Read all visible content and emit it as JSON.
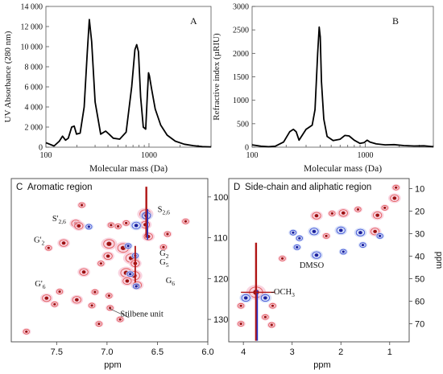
{
  "chart_data": [
    {
      "id": "A",
      "type": "line",
      "panel_letter": "A",
      "xlabel": "Molecular mass (Da)",
      "ylabel": "UV Absorbance (280 nm)",
      "x_scale": "log",
      "xlim": [
        100,
        4000
      ],
      "ylim": [
        0,
        14000
      ],
      "x_ticks": [
        100,
        1000
      ],
      "x_tick_labels": [
        "100",
        "1000"
      ],
      "y_ticks": [
        0,
        2000,
        4000,
        6000,
        8000,
        10000,
        12000,
        14000
      ],
      "y_tick_labels": [
        "0",
        "2 000",
        "4 000",
        "6 000",
        "8 000",
        "10 000",
        "12 000",
        "14 000"
      ],
      "series": [
        {
          "color": "#000000",
          "x": [
            100,
            120,
            135,
            145,
            155,
            165,
            178,
            188,
            198,
            215,
            235,
            252,
            264,
            278,
            300,
            340,
            380,
            410,
            450,
            520,
            600,
            680,
            730,
            760,
            790,
            830,
            880,
            930,
            965,
            990,
            1010,
            1060,
            1150,
            1300,
            1500,
            1800,
            2200,
            2700,
            3300,
            4000
          ],
          "y": [
            450,
            120,
            600,
            1100,
            700,
            900,
            2000,
            2100,
            1300,
            1400,
            4000,
            9500,
            12700,
            10500,
            4500,
            1300,
            1600,
            1300,
            900,
            800,
            1500,
            6000,
            9700,
            10200,
            9500,
            5000,
            2000,
            1800,
            5300,
            7400,
            7100,
            5800,
            3800,
            2200,
            1200,
            600,
            300,
            150,
            60,
            30
          ]
        }
      ]
    },
    {
      "id": "B",
      "type": "line",
      "panel_letter": "B",
      "xlabel": "Molecular mass (Da)",
      "ylabel": "Refractive index (µRIU)",
      "x_scale": "log",
      "xlim": [
        100,
        4000
      ],
      "ylim": [
        0,
        3000
      ],
      "x_ticks": [
        100,
        1000
      ],
      "x_tick_labels": [
        "100",
        "1000"
      ],
      "y_ticks": [
        0,
        500,
        1000,
        1500,
        2000,
        2500,
        3000
      ],
      "y_tick_labels": [
        "0",
        "500",
        "1000",
        "1500",
        "2000",
        "2500",
        "3000"
      ],
      "series": [
        {
          "color": "#000000",
          "x": [
            100,
            120,
            140,
            160,
            190,
            215,
            232,
            245,
            260,
            300,
            340,
            360,
            380,
            392,
            400,
            410,
            430,
            460,
            520,
            600,
            660,
            720,
            800,
            900,
            980,
            1040,
            1100,
            1250,
            1500,
            1800,
            2200,
            2700,
            3300,
            4000
          ],
          "y": [
            50,
            20,
            10,
            20,
            110,
            330,
            380,
            330,
            150,
            380,
            470,
            800,
            2000,
            2560,
            2350,
            1400,
            600,
            230,
            140,
            170,
            250,
            240,
            150,
            80,
            100,
            150,
            110,
            70,
            50,
            55,
            35,
            25,
            30,
            10
          ]
        }
      ]
    },
    {
      "id": "C",
      "type": "scatter",
      "panel_letter": "C",
      "title": "Aromatic region",
      "xlabel": "ppm",
      "ylabel": "",
      "x_reversed": true,
      "y_reversed": true,
      "xlim": [
        7.95,
        6.0
      ],
      "ylim": [
        95.5,
        135.5
      ],
      "x_ticks": [
        7.5,
        7.0,
        6.5,
        6.0
      ],
      "x_tick_labels": [
        "7.5",
        "7.0",
        "6.5",
        "6.0"
      ],
      "y_ticks": [
        100,
        110,
        120,
        130
      ],
      "y_tick_labels": [
        "100",
        "110",
        "120",
        "130"
      ],
      "annotations": [
        {
          "label": "S'",
          "sub": "2,6",
          "x": 7.4,
          "y": 105.5
        },
        {
          "label": "S",
          "sub": "2,6",
          "x": 6.53,
          "y": 103.3
        },
        {
          "label": "G'",
          "sub": "2",
          "x": 7.55,
          "y": 110.8
        },
        {
          "label": "G",
          "sub": "2",
          "x": 6.51,
          "y": 113.8
        },
        {
          "label": "G",
          "sub": "5",
          "x": 6.51,
          "y": 116.0
        },
        {
          "label": "G",
          "sub": "6",
          "x": 6.45,
          "y": 120.5
        },
        {
          "label": "G'",
          "sub": "6",
          "x": 7.54,
          "y": 121.5
        },
        {
          "label": "Stilbene unit",
          "sub": "",
          "x": 6.9,
          "y": 128.5
        }
      ],
      "peaks": [
        {
          "x": 6.62,
          "y": 104.2,
          "color": "red",
          "size": 3
        },
        {
          "x": 6.61,
          "y": 104.6,
          "color": "blue",
          "size": 2
        },
        {
          "x": 6.62,
          "y": 106.8,
          "color": "red",
          "size": 2
        },
        {
          "x": 7.31,
          "y": 106.5,
          "color": "red",
          "size": 2
        },
        {
          "x": 7.28,
          "y": 107.1,
          "color": "red",
          "size": 2
        },
        {
          "x": 7.18,
          "y": 107.3,
          "color": "blue",
          "size": 1
        },
        {
          "x": 6.96,
          "y": 106.9,
          "color": "red",
          "size": 1
        },
        {
          "x": 6.81,
          "y": 106.4,
          "color": "red",
          "size": 1
        },
        {
          "x": 6.71,
          "y": 107.0,
          "color": "blue",
          "size": 2
        },
        {
          "x": 6.89,
          "y": 107.2,
          "color": "red",
          "size": 1
        },
        {
          "x": 6.59,
          "y": 109.7,
          "color": "red",
          "size": 2
        },
        {
          "x": 7.43,
          "y": 111.3,
          "color": "red",
          "size": 2
        },
        {
          "x": 7.58,
          "y": 112.5,
          "color": "red",
          "size": 1
        },
        {
          "x": 6.98,
          "y": 111.5,
          "color": "red",
          "size": 3
        },
        {
          "x": 6.84,
          "y": 112.5,
          "color": "red",
          "size": 3
        },
        {
          "x": 6.79,
          "y": 112.0,
          "color": "blue",
          "size": 1
        },
        {
          "x": 6.99,
          "y": 114.5,
          "color": "red",
          "size": 2
        },
        {
          "x": 6.76,
          "y": 115.0,
          "color": "red",
          "size": 3
        },
        {
          "x": 6.72,
          "y": 114.4,
          "color": "blue",
          "size": 1
        },
        {
          "x": 6.72,
          "y": 116.3,
          "color": "red",
          "size": 2
        },
        {
          "x": 6.81,
          "y": 118.6,
          "color": "red",
          "size": 3
        },
        {
          "x": 6.73,
          "y": 119.3,
          "color": "red",
          "size": 3
        },
        {
          "x": 6.77,
          "y": 118.9,
          "color": "blue",
          "size": 1
        },
        {
          "x": 6.8,
          "y": 120.6,
          "color": "red",
          "size": 2
        },
        {
          "x": 6.7,
          "y": 121.6,
          "color": "red",
          "size": 2
        },
        {
          "x": 6.71,
          "y": 121.9,
          "color": "blue",
          "size": 1
        },
        {
          "x": 7.23,
          "y": 118.4,
          "color": "red",
          "size": 2
        },
        {
          "x": 7.06,
          "y": 116.3,
          "color": "red",
          "size": 1
        },
        {
          "x": 7.47,
          "y": 123.2,
          "color": "red",
          "size": 1
        },
        {
          "x": 7.6,
          "y": 124.8,
          "color": "red",
          "size": 2
        },
        {
          "x": 7.52,
          "y": 126.3,
          "color": "red",
          "size": 1
        },
        {
          "x": 7.3,
          "y": 125.2,
          "color": "red",
          "size": 2
        },
        {
          "x": 7.12,
          "y": 123.3,
          "color": "red",
          "size": 1
        },
        {
          "x": 6.98,
          "y": 124.2,
          "color": "red",
          "size": 1
        },
        {
          "x": 7.15,
          "y": 126.6,
          "color": "red",
          "size": 1
        },
        {
          "x": 6.97,
          "y": 127.2,
          "color": "red",
          "size": 1
        },
        {
          "x": 6.87,
          "y": 130.0,
          "color": "red",
          "size": 1
        },
        {
          "x": 7.08,
          "y": 131.1,
          "color": "red",
          "size": 1
        },
        {
          "x": 7.8,
          "y": 133.0,
          "color": "red",
          "size": 1
        },
        {
          "x": 7.25,
          "y": 102.0,
          "color": "red",
          "size": 1
        },
        {
          "x": 6.22,
          "y": 106.0,
          "color": "red",
          "size": 1
        },
        {
          "x": 6.4,
          "y": 109.1,
          "color": "red",
          "size": 1
        },
        {
          "x": 6.44,
          "y": 112.3,
          "color": "red",
          "size": 1
        }
      ]
    },
    {
      "id": "D",
      "type": "scatter",
      "panel_letter": "D",
      "title": "Side-chain and aliphatic region",
      "xlabel": "ppm",
      "ylabel": "ppm",
      "x_reversed": true,
      "y_reversed": true,
      "xlim": [
        4.3,
        0.6
      ],
      "ylim": [
        5.5,
        78
      ],
      "x_ticks": [
        4,
        3,
        2,
        1
      ],
      "x_tick_labels": [
        "4",
        "3",
        "2",
        "1"
      ],
      "y_ticks": [
        10,
        20,
        30,
        40,
        50,
        60,
        70
      ],
      "y_tick_labels": [
        "10",
        "20",
        "30",
        "40",
        "50",
        "60",
        "70"
      ],
      "annotations": [
        {
          "label": "-OCH",
          "sub": "3",
          "x": 3.5,
          "y": 55.5
        },
        {
          "label": "DMSO",
          "sub": "",
          "x": 2.75,
          "y": 44.5
        }
      ],
      "peaks": [
        {
          "x": 3.74,
          "y": 56.0,
          "color": "red",
          "size": 4
        },
        {
          "x": 3.95,
          "y": 58.5,
          "color": "blue",
          "size": 2
        },
        {
          "x": 3.55,
          "y": 58.5,
          "color": "blue",
          "size": 2
        },
        {
          "x": 4.05,
          "y": 62.0,
          "color": "red",
          "size": 1
        },
        {
          "x": 3.4,
          "y": 62.0,
          "color": "red",
          "size": 1
        },
        {
          "x": 3.55,
          "y": 67.0,
          "color": "red",
          "size": 1
        },
        {
          "x": 4.05,
          "y": 70.0,
          "color": "red",
          "size": 1
        },
        {
          "x": 3.42,
          "y": 70.5,
          "color": "red",
          "size": 1
        },
        {
          "x": 2.5,
          "y": 22.0,
          "color": "red",
          "size": 2
        },
        {
          "x": 2.18,
          "y": 21.0,
          "color": "red",
          "size": 1
        },
        {
          "x": 1.95,
          "y": 20.8,
          "color": "red",
          "size": 2
        },
        {
          "x": 1.65,
          "y": 19.2,
          "color": "red",
          "size": 1
        },
        {
          "x": 1.25,
          "y": 21.8,
          "color": "red",
          "size": 2
        },
        {
          "x": 1.1,
          "y": 18.5,
          "color": "red",
          "size": 1
        },
        {
          "x": 0.9,
          "y": 14.2,
          "color": "red",
          "size": 2
        },
        {
          "x": 0.87,
          "y": 9.5,
          "color": "red",
          "size": 1
        },
        {
          "x": 2.98,
          "y": 29.5,
          "color": "blue",
          "size": 1
        },
        {
          "x": 2.55,
          "y": 29.0,
          "color": "blue",
          "size": 2
        },
        {
          "x": 2.3,
          "y": 31.0,
          "color": "red",
          "size": 1
        },
        {
          "x": 2.0,
          "y": 28.5,
          "color": "blue",
          "size": 2
        },
        {
          "x": 1.6,
          "y": 29.5,
          "color": "blue",
          "size": 2
        },
        {
          "x": 1.3,
          "y": 29.0,
          "color": "red",
          "size": 2
        },
        {
          "x": 1.2,
          "y": 31.0,
          "color": "blue",
          "size": 1
        },
        {
          "x": 2.9,
          "y": 36.0,
          "color": "blue",
          "size": 1
        },
        {
          "x": 2.5,
          "y": 39.5,
          "color": "blue",
          "size": 2
        },
        {
          "x": 1.95,
          "y": 38.0,
          "color": "blue",
          "size": 1
        },
        {
          "x": 1.55,
          "y": 35.0,
          "color": "blue",
          "size": 1
        },
        {
          "x": 3.2,
          "y": 41.0,
          "color": "red",
          "size": 1
        },
        {
          "x": 2.85,
          "y": 32.0,
          "color": "blue",
          "size": 1
        }
      ]
    }
  ]
}
